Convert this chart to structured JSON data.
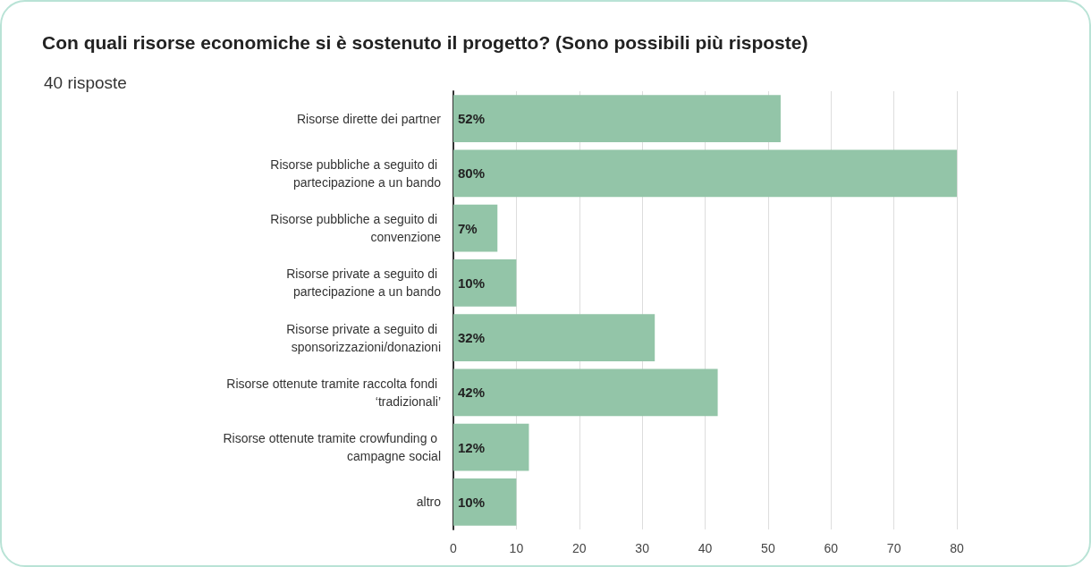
{
  "chart_data": {
    "type": "bar",
    "orientation": "horizontal",
    "title": "Con quali risorse economiche si è sostenuto il progetto? (Sono possibili più risposte)",
    "subtitle": "40 risposte",
    "categories": [
      "Risorse dirette dei partner",
      "Risorse pubbliche a seguito di partecipazione a un bando",
      "Risorse pubbliche a seguito di convenzione",
      "Risorse private a seguito di partecipazione a un bando",
      "Risorse private a seguito di sponsorizzazioni/donazioni",
      "Risorse ottenute tramite raccolta fondi ‘tradizionali’",
      "Risorse ottenute tramite crowfunding o campagne social",
      "altro"
    ],
    "values": [
      52,
      80,
      7,
      10,
      32,
      42,
      12,
      10
    ],
    "value_labels": [
      "52%",
      "80%",
      "7%",
      "10%",
      "32%",
      "42%",
      "12%",
      "10%"
    ],
    "color": "#93c5a8",
    "xlim": [
      0,
      80
    ],
    "xticks": [
      0,
      10,
      20,
      30,
      40,
      50,
      60,
      70,
      80
    ],
    "grid": "x"
  }
}
